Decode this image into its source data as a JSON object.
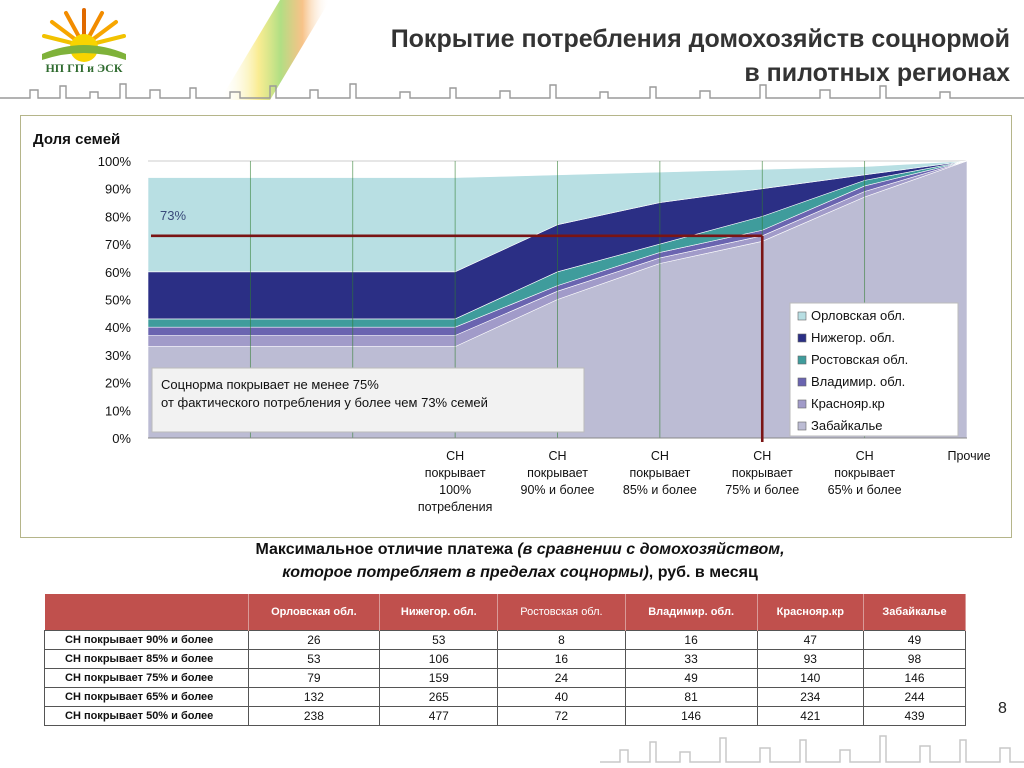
{
  "header": {
    "logo_text": "НП ГП и ЭСК",
    "title_line1": "Покрытие потребления домохозяйств соцнормой",
    "title_line2": "в пилотных регионах"
  },
  "chart_data": {
    "type": "area",
    "ylabel": "Доля семей",
    "ylim": [
      0,
      100
    ],
    "y_ticks": [
      "0%",
      "10%",
      "20%",
      "30%",
      "40%",
      "50%",
      "60%",
      "70%",
      "80%",
      "90%",
      "100%"
    ],
    "categories": [
      "",
      "",
      "",
      "СН покрывает 100% потребления",
      "СН покрывает 90% и более",
      "СН покрывает 85% и более",
      "СН покрывает 75% и более",
      "СН покрывает 65% и более",
      "Прочие"
    ],
    "category_lines": [
      [],
      [],
      [],
      [
        "СН",
        "покрывает",
        "100%",
        "потребления"
      ],
      [
        "СН",
        "покрывает",
        "90% и более"
      ],
      [
        "СН",
        "покрывает",
        "85% и более"
      ],
      [
        "СН",
        "покрывает",
        "75% и более"
      ],
      [
        "СН",
        "покрывает",
        "65% и более"
      ],
      [
        "Прочие"
      ]
    ],
    "series": [
      {
        "name": "Забайкалье",
        "color": "#bcbcd4",
        "values": [
          33,
          33,
          33,
          33,
          50,
          63,
          71,
          87,
          100
        ]
      },
      {
        "name": "Краснояр.кр",
        "color": "#a19bc9",
        "values": [
          37,
          37,
          37,
          37,
          53,
          65,
          73,
          89,
          100
        ]
      },
      {
        "name": "Владимир. обл.",
        "color": "#6a64b0",
        "values": [
          40,
          40,
          40,
          40,
          55,
          67,
          75,
          91,
          100
        ]
      },
      {
        "name": "Ростовская обл.",
        "color": "#3f9c9c",
        "values": [
          43,
          43,
          43,
          43,
          60,
          70,
          80,
          93,
          100
        ]
      },
      {
        "name": "Нижегор. обл.",
        "color": "#2b2f85",
        "values": [
          60,
          60,
          60,
          60,
          77,
          85,
          90,
          95,
          100
        ]
      },
      {
        "name": "Орловская обл.",
        "color": "#b8dfe3",
        "values": [
          94,
          94,
          94,
          94,
          95,
          96,
          97,
          98,
          100
        ]
      }
    ],
    "legend_order": [
      "Орловская обл.",
      "Нижегор. обл.",
      "Ростовская обл.",
      "Владимир. обл.",
      "Краснояр.кр",
      "Забайкалье"
    ],
    "legend_placement": "right",
    "annotation_73": "73%",
    "marker": {
      "y": 73,
      "x_category": "СН покрывает 75% и более",
      "color": "#7a1414"
    },
    "note_line1": "Соцнорма покрывает не менее 75%",
    "note_line2": "от фактического потребления у более чем 73% семей",
    "grid": "vertical"
  },
  "table": {
    "caption_line1_normal": "Максимальное отличие платежа ",
    "caption_line1_italic": "(в сравнении с домохозяйством,",
    "caption_line2_italic": "которое потребляет в пределах соцнормы)",
    "caption_line2_normal": ", руб. в месяц",
    "columns": [
      "Орловская обл.",
      "Нижегор. обл.",
      "Ростовская обл.",
      "Владимир. обл.",
      "Краснояр.кр",
      "Забайкалье"
    ],
    "rows": [
      {
        "label": "СН покрывает 90% и более",
        "values": [
          "26",
          "53",
          "8",
          "16",
          "47",
          "49"
        ]
      },
      {
        "label": "СН покрывает 85% и более",
        "values": [
          "53",
          "106",
          "16",
          "33",
          "93",
          "98"
        ]
      },
      {
        "label": "СН покрывает 75% и более",
        "values": [
          "79",
          "159",
          "24",
          "49",
          "140",
          "146"
        ]
      },
      {
        "label": "СН покрывает 65% и более",
        "values": [
          "132",
          "265",
          "40",
          "81",
          "234",
          "244"
        ]
      },
      {
        "label": "СН покрывает 50% и более",
        "values": [
          "238",
          "477",
          "72",
          "146",
          "421",
          "439"
        ]
      }
    ]
  },
  "page_number": "8"
}
